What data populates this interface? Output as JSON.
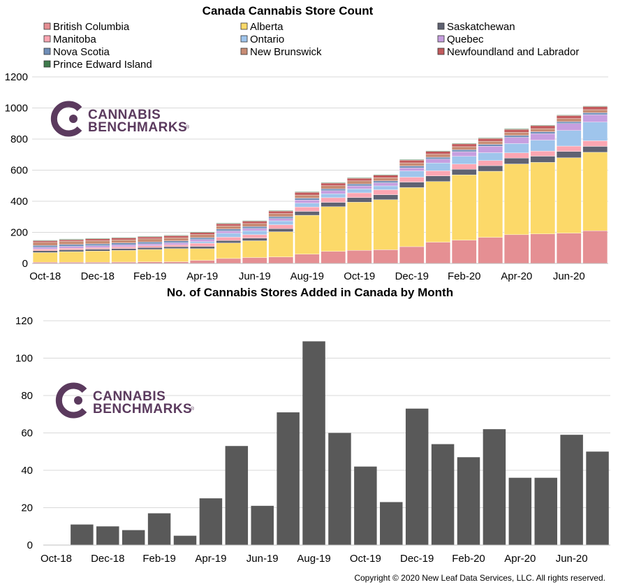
{
  "copyright": "Copyright © 2020 New Leaf Data Services, LLC. All rights reserved.",
  "logo": {
    "line1": "CANNABIS",
    "line2": "BENCHMARKS",
    "registered": "®",
    "color": "#5b3a5e"
  },
  "chart_data": [
    {
      "type": "bar",
      "stacked": true,
      "title": "Canada Cannabis Store Count",
      "xlabel": "",
      "ylabel": "",
      "ylim": [
        0,
        1200
      ],
      "yticks": [
        0,
        200,
        400,
        600,
        800,
        1000,
        1200
      ],
      "grid": true,
      "legend_position": "top",
      "categories": [
        "Oct-18",
        "Nov-18",
        "Dec-18",
        "Jan-19",
        "Feb-19",
        "Mar-19",
        "Apr-19",
        "May-19",
        "Jun-19",
        "Jul-19",
        "Aug-19",
        "Sep-19",
        "Oct-19",
        "Nov-19",
        "Dec-19",
        "Jan-20",
        "Feb-20",
        "Mar-20",
        "Apr-20",
        "May-20",
        "Jun-20",
        "Jul-20"
      ],
      "xtick_labels": [
        "Oct-18",
        "Dec-18",
        "Feb-19",
        "Apr-19",
        "Jun-19",
        "Aug-19",
        "Oct-19",
        "Dec-19",
        "Feb-20",
        "Apr-20",
        "Jun-20"
      ],
      "series": [
        {
          "name": "British Columbia",
          "color": "#e58f93",
          "values": [
            8,
            8,
            8,
            9,
            10,
            11,
            20,
            32,
            38,
            42,
            60,
            78,
            84,
            88,
            108,
            137,
            150,
            168,
            185,
            190,
            195,
            210
          ]
        },
        {
          "name": "Alberta",
          "color": "#fcd969",
          "values": [
            62,
            68,
            72,
            75,
            80,
            85,
            75,
            100,
            108,
            162,
            250,
            287,
            310,
            322,
            380,
            390,
            420,
            425,
            455,
            460,
            485,
            505
          ]
        },
        {
          "name": "Saskatchewan",
          "color": "#5f6272",
          "values": [
            12,
            12,
            12,
            12,
            12,
            12,
            15,
            15,
            17,
            20,
            25,
            28,
            30,
            32,
            35,
            36,
            36,
            36,
            38,
            40,
            40,
            38
          ]
        },
        {
          "name": "Manitoba",
          "color": "#fca6b2",
          "values": [
            10,
            10,
            10,
            12,
            12,
            12,
            20,
            22,
            22,
            25,
            28,
            30,
            30,
            32,
            32,
            33,
            33,
            33,
            33,
            33,
            35,
            36
          ]
        },
        {
          "name": "Ontario",
          "color": "#9fc5ec",
          "values": [
            0,
            0,
            0,
            0,
            0,
            0,
            10,
            25,
            25,
            25,
            25,
            25,
            25,
            25,
            40,
            50,
            50,
            50,
            60,
            70,
            100,
            120
          ]
        },
        {
          "name": "Quebec",
          "color": "#c79fe0",
          "values": [
            12,
            12,
            12,
            12,
            12,
            13,
            14,
            15,
            15,
            15,
            20,
            20,
            20,
            20,
            20,
            25,
            30,
            42,
            40,
            42,
            45,
            48
          ]
        },
        {
          "name": "Nova Scotia",
          "color": "#6f8eb8",
          "values": [
            12,
            12,
            12,
            12,
            12,
            12,
            12,
            12,
            12,
            12,
            12,
            12,
            12,
            12,
            12,
            12,
            12,
            12,
            12,
            12,
            12,
            12
          ]
        },
        {
          "name": "New Brunswick",
          "color": "#c88c74",
          "values": [
            20,
            20,
            20,
            20,
            20,
            20,
            20,
            20,
            20,
            20,
            20,
            20,
            20,
            20,
            20,
            20,
            20,
            20,
            20,
            20,
            20,
            20
          ]
        },
        {
          "name": "Newfoundland and Labrador",
          "color": "#c25a5c",
          "values": [
            10,
            10,
            12,
            12,
            13,
            13,
            13,
            14,
            15,
            16,
            17,
            17,
            17,
            17,
            17,
            18,
            18,
            18,
            19,
            19,
            19,
            20
          ]
        },
        {
          "name": "Prince Edward Island",
          "color": "#3f7b4c",
          "values": [
            4,
            4,
            4,
            4,
            4,
            4,
            4,
            4,
            4,
            4,
            4,
            4,
            4,
            4,
            4,
            4,
            4,
            4,
            4,
            4,
            4,
            4
          ]
        }
      ]
    },
    {
      "type": "bar",
      "title": "No. of Cannabis Stores Added in Canada by Month",
      "xlabel": "",
      "ylabel": "",
      "ylim": [
        0,
        120
      ],
      "yticks": [
        0,
        20,
        40,
        60,
        80,
        100,
        120
      ],
      "grid": true,
      "bar_color": "#595959",
      "categories": [
        "Oct-18",
        "Nov-18",
        "Dec-18",
        "Jan-19",
        "Feb-19",
        "Mar-19",
        "Apr-19",
        "May-19",
        "Jun-19",
        "Jul-19",
        "Aug-19",
        "Sep-19",
        "Oct-19",
        "Nov-19",
        "Dec-19",
        "Jan-20",
        "Feb-20",
        "Mar-20",
        "Apr-20",
        "May-20",
        "Jun-20",
        "Jul-20"
      ],
      "xtick_labels": [
        "Oct-18",
        "Dec-18",
        "Feb-19",
        "Apr-19",
        "Jun-19",
        "Aug-19",
        "Oct-19",
        "Dec-19",
        "Feb-20",
        "Apr-20",
        "Jun-20"
      ],
      "values": [
        0,
        11,
        10,
        8,
        17,
        5,
        25,
        53,
        21,
        71,
        109,
        60,
        42,
        23,
        73,
        54,
        47,
        62,
        36,
        36,
        59,
        50
      ]
    }
  ]
}
